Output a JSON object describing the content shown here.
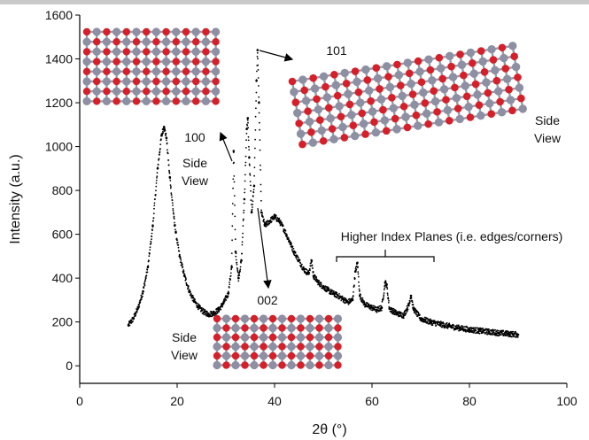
{
  "chart_data": {
    "type": "scatter",
    "title": "",
    "xlabel": "2θ (°)",
    "ylabel": "Intensity (a.u.)",
    "xlim": [
      0,
      100
    ],
    "ylim": [
      -80,
      1600
    ],
    "xticks": [
      0,
      20,
      40,
      60,
      80,
      100
    ],
    "yticks": [
      0,
      200,
      400,
      600,
      800,
      1000,
      1200,
      1400,
      1600
    ],
    "grid": false,
    "series": [
      {
        "color": "#000000",
        "points": [
          [
            10,
            185
          ],
          [
            11,
            215
          ],
          [
            12,
            265
          ],
          [
            13,
            340
          ],
          [
            14,
            450
          ],
          [
            15,
            640
          ],
          [
            16,
            900
          ],
          [
            16.8,
            1050
          ],
          [
            17.3,
            1090
          ],
          [
            17.8,
            1040
          ],
          [
            18.5,
            860
          ],
          [
            19.5,
            640
          ],
          [
            20.5,
            500
          ],
          [
            21.5,
            410
          ],
          [
            22.5,
            340
          ],
          [
            23.5,
            295
          ],
          [
            24.5,
            265
          ],
          [
            25.5,
            245
          ],
          [
            26.5,
            235
          ],
          [
            27.5,
            240
          ],
          [
            28.5,
            255
          ],
          [
            29.5,
            285
          ],
          [
            30.5,
            330
          ],
          [
            31.2,
            450
          ],
          [
            31.6,
            980
          ],
          [
            32.0,
            520
          ],
          [
            32.6,
            400
          ],
          [
            33.2,
            480
          ],
          [
            33.8,
            760
          ],
          [
            34.3,
            1080
          ],
          [
            34.5,
            1130
          ],
          [
            34.8,
            950
          ],
          [
            35.3,
            700
          ],
          [
            35.8,
            820
          ],
          [
            36.3,
            1300
          ],
          [
            36.5,
            1440
          ],
          [
            36.8,
            1200
          ],
          [
            37.3,
            700
          ],
          [
            38.0,
            640
          ],
          [
            39.0,
            660
          ],
          [
            40.0,
            680
          ],
          [
            41.0,
            660
          ],
          [
            42.0,
            620
          ],
          [
            43.0,
            570
          ],
          [
            44.0,
            520
          ],
          [
            45.0,
            480
          ],
          [
            46.0,
            440
          ],
          [
            47.0,
            420
          ],
          [
            47.6,
            480
          ],
          [
            48.0,
            410
          ],
          [
            49.0,
            380
          ],
          [
            50.0,
            360
          ],
          [
            51.0,
            345
          ],
          [
            52.0,
            330
          ],
          [
            53.0,
            320
          ],
          [
            54.0,
            305
          ],
          [
            55.0,
            290
          ],
          [
            56.0,
            300
          ],
          [
            56.6,
            430
          ],
          [
            57.0,
            470
          ],
          [
            57.5,
            320
          ],
          [
            58.5,
            280
          ],
          [
            60.0,
            265
          ],
          [
            61.0,
            255
          ],
          [
            62.0,
            265
          ],
          [
            62.7,
            380
          ],
          [
            63.0,
            370
          ],
          [
            63.6,
            260
          ],
          [
            65.0,
            240
          ],
          [
            66.5,
            230
          ],
          [
            67.5,
            275
          ],
          [
            68.0,
            320
          ],
          [
            68.5,
            260
          ],
          [
            70.0,
            215
          ],
          [
            72.0,
            200
          ],
          [
            74.0,
            190
          ],
          [
            76.0,
            180
          ],
          [
            78.0,
            172
          ],
          [
            80.0,
            165
          ],
          [
            82.0,
            160
          ],
          [
            84.0,
            155
          ],
          [
            86.0,
            150
          ],
          [
            88.0,
            146
          ],
          [
            90.0,
            142
          ]
        ]
      }
    ],
    "annotations": [
      "100",
      "Side View",
      "101",
      "Side View",
      "002",
      "Side View",
      "Higher Index Planes (i.e. edges/corners)"
    ]
  },
  "labels": {
    "ylabel": "Intensity (a.u.)",
    "xlabel": "2θ (°)",
    "peak_100": "100",
    "peak_101": "101",
    "peak_002": "002",
    "side_word": "Side",
    "view_word": "View",
    "higher_index": "Higher Index Planes (i.e. edges/corners)"
  },
  "colors": {
    "oxygen": "#d62029",
    "zinc": "#8d8fa3",
    "bond": "#9a9aaa",
    "data": "#000000"
  }
}
